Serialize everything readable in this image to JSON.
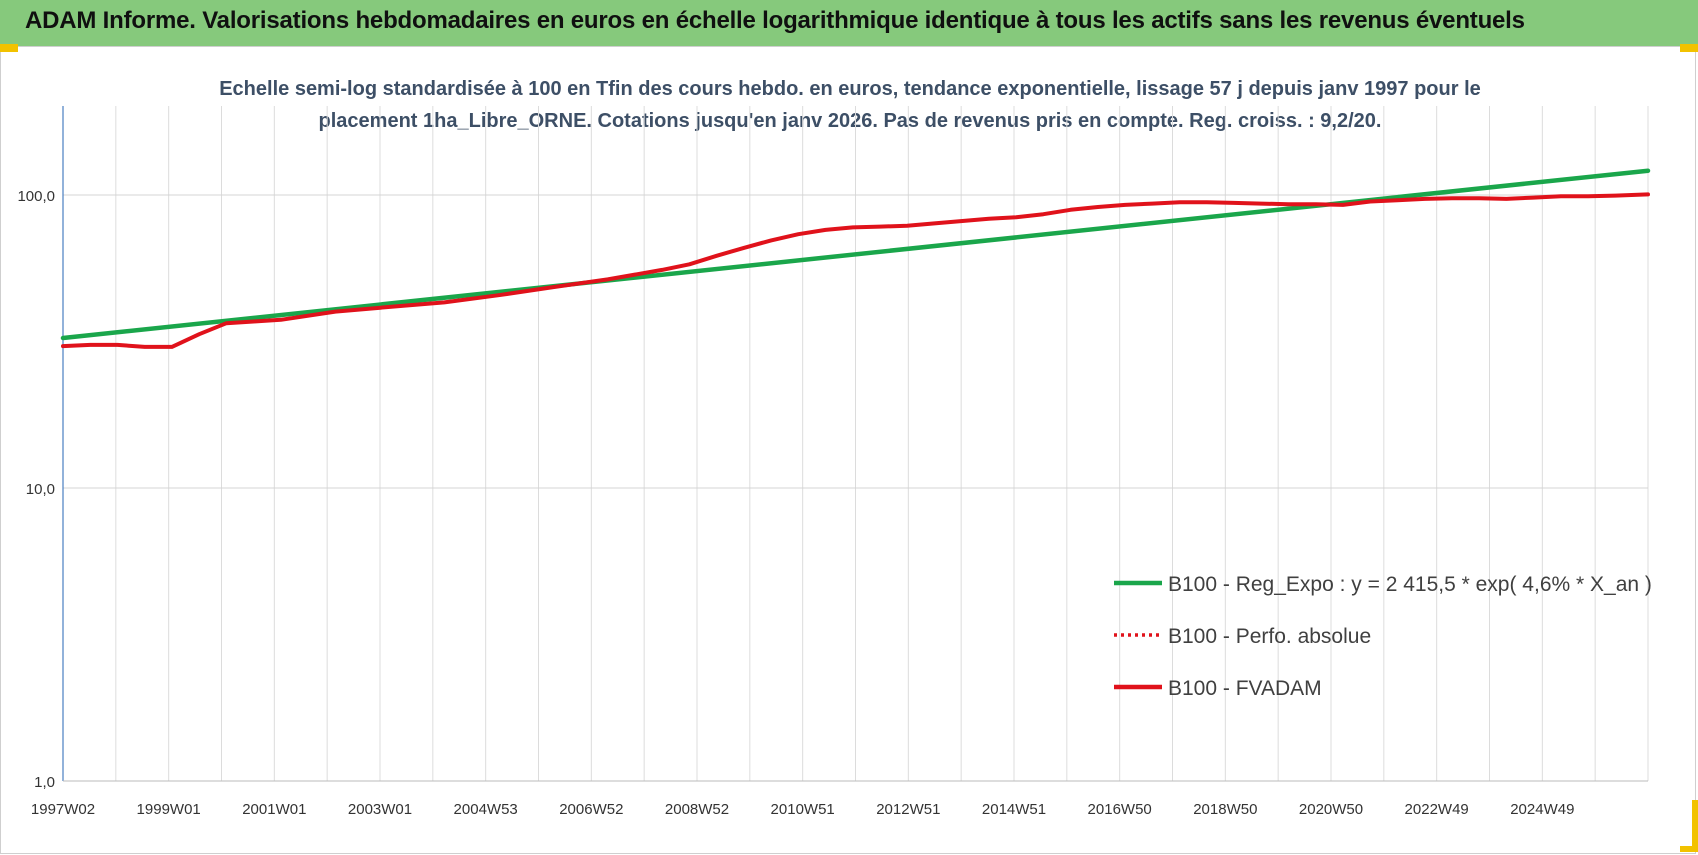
{
  "header": {
    "title": "ADAM Informe. Valorisations hebdomadaires en euros en échelle logarithmique identique à tous les actifs sans les revenus éventuels"
  },
  "chart_data": {
    "type": "line",
    "subtitle_line1": "Echelle semi-log standardisée à 100 en Tfin des cours hebdo. en euros, tendance exponentielle, lissage 57 j depuis janv 1997 pour le",
    "subtitle_line2": "placement 1ha_Libre_ORNE. Cotations jusqu'en janv 2026. Pas de revenus pris en compte. Reg. croiss. : 9,2/20.",
    "y_scale": "log",
    "ylim": [
      1,
      200
    ],
    "y_ticks": [
      1,
      10,
      100
    ],
    "y_tick_labels": [
      "1,0",
      "10,0",
      "100,0"
    ],
    "x_tick_labels": [
      "1997W02",
      "1999W01",
      "2001W01",
      "2003W01",
      "2004W53",
      "2006W52",
      "2008W52",
      "2010W51",
      "2012W51",
      "2014W51",
      "2016W50",
      "2018W50",
      "2020W50",
      "2022W49",
      "2024W49"
    ],
    "xlim": [
      1997.0,
      2026.1
    ],
    "grid": true,
    "legend_position": "bottom-right",
    "series": [
      {
        "name": "B100 - Reg_Expo : y = 2 415,5 * exp( 4,6% *  X_an )",
        "color": "#1aa64b",
        "style": "solid",
        "x": [
          1997.0,
          2026.1
        ],
        "y": [
          32.5,
          121
        ]
      },
      {
        "name": "B100 - Perfo. absolue",
        "color": "#e0121b",
        "style": "dotted",
        "x": [],
        "y": []
      },
      {
        "name": "B100 - FVADAM",
        "color": "#e0121b",
        "style": "solid",
        "x": [
          1997.0,
          1997.5,
          1998.0,
          1998.5,
          1999.0,
          1999.5,
          2000.0,
          2000.5,
          2001.0,
          2002.0,
          2003.0,
          2004.0,
          2005.0,
          2006.0,
          2007.0,
          2008.0,
          2008.5,
          2009.0,
          2009.5,
          2010.0,
          2010.5,
          2011.0,
          2011.5,
          2012.0,
          2012.5,
          2013.0,
          2014.0,
          2014.5,
          2015.0,
          2015.5,
          2016.0,
          2016.5,
          2017.0,
          2017.5,
          2018.0,
          2018.5,
          2019.0,
          2019.5,
          2020.0,
          2020.5,
          2021.0,
          2021.5,
          2022.0,
          2022.5,
          2023.0,
          2023.5,
          2024.0,
          2024.5,
          2025.0,
          2025.5,
          2026.1
        ],
        "y": [
          30.5,
          30.8,
          30.8,
          30.3,
          30.3,
          33.5,
          36.5,
          37.0,
          37.5,
          40.0,
          41.5,
          43.0,
          45.5,
          48.5,
          51.5,
          55.5,
          58.0,
          62.0,
          66.0,
          70.0,
          73.5,
          76.0,
          77.5,
          78.0,
          78.5,
          80.0,
          83.0,
          84.0,
          86.0,
          89.0,
          91.0,
          92.5,
          93.5,
          94.5,
          94.5,
          94.0,
          93.5,
          93.0,
          93.0,
          92.5,
          95.0,
          96.0,
          97.0,
          97.5,
          97.5,
          97.0,
          98.0,
          99.0,
          99.0,
          99.5,
          100.5
        ]
      }
    ]
  }
}
